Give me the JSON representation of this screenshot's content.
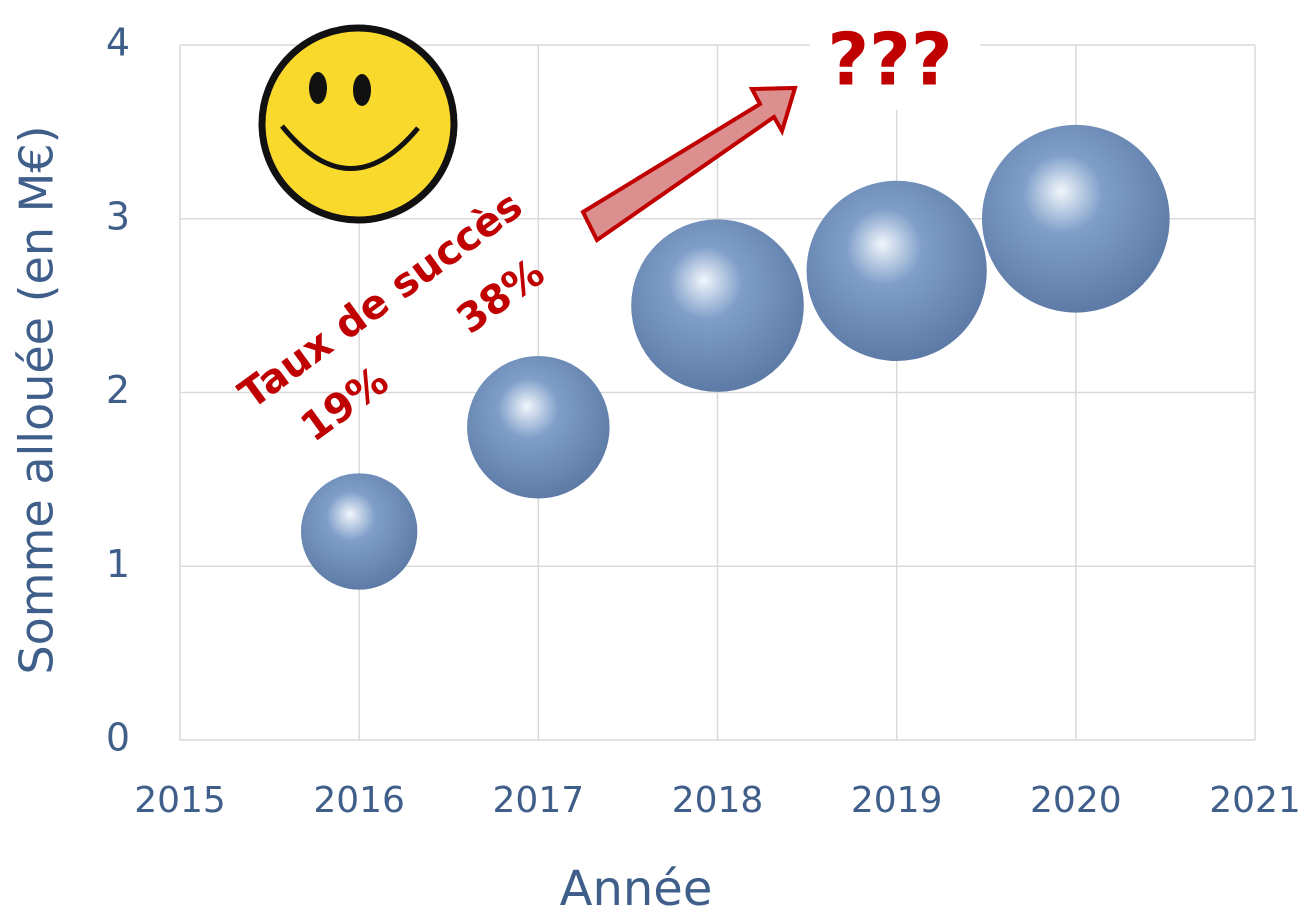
{
  "chart_data": {
    "type": "bubble",
    "x_label": "Année",
    "y_label": "Somme allouée (en M€)",
    "x": [
      2016,
      2017,
      2018,
      2019,
      2020
    ],
    "series": [
      {
        "color": "#7f9fc9",
        "values": [
          1.2,
          1.8,
          2.5,
          2.7,
          3.0
        ],
        "sizes": [
          10,
          15,
          22,
          24,
          26
        ]
      }
    ],
    "xlim": [
      2015,
      2021
    ],
    "xticks": [
      2015,
      2016,
      2017,
      2018,
      2019,
      2020,
      2021
    ],
    "ylim": [
      0,
      4
    ],
    "yticks": [
      0,
      1,
      2,
      3,
      4
    ],
    "grid": true,
    "annotations": [
      "Taux de succès",
      "19%",
      "38%",
      "???"
    ]
  }
}
